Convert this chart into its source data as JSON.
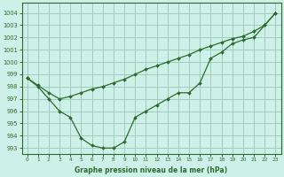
{
  "title": "Graphe pression niveau de la mer (hPa)",
  "background_color": "#cdf0e8",
  "grid_color": "#a0ccbb",
  "line_color": "#2d6a2d",
  "xlim": [
    -0.5,
    23.5
  ],
  "ylim": [
    992.5,
    1004.8
  ],
  "yticks": [
    993,
    994,
    995,
    996,
    997,
    998,
    999,
    1000,
    1001,
    1002,
    1003,
    1004
  ],
  "xticks": [
    0,
    1,
    2,
    3,
    4,
    5,
    6,
    7,
    8,
    9,
    10,
    11,
    12,
    13,
    14,
    15,
    16,
    17,
    18,
    19,
    20,
    21,
    22,
    23
  ],
  "line1_x": [
    0,
    1,
    2,
    3,
    4,
    5,
    6,
    7,
    8,
    9,
    10,
    11,
    12,
    13,
    14,
    15,
    16,
    17,
    18,
    19,
    20,
    21,
    22,
    23
  ],
  "line1_y": [
    998.7,
    998.1,
    997.5,
    997.0,
    997.2,
    997.5,
    997.8,
    998.0,
    998.3,
    998.6,
    999.0,
    999.4,
    999.7,
    1000.0,
    1000.3,
    1000.6,
    1001.0,
    1001.3,
    1001.6,
    1001.9,
    1002.1,
    1002.5,
    1003.0,
    1004.0
  ],
  "line2_x": [
    0,
    1,
    2,
    3,
    4,
    5,
    6,
    7,
    8,
    9,
    10,
    11,
    12,
    13,
    14,
    15,
    16,
    17,
    18,
    19,
    20,
    21,
    22,
    23
  ],
  "line2_y": [
    998.7,
    998.0,
    997.0,
    996.0,
    995.5,
    993.8,
    993.2,
    993.0,
    993.0,
    993.5,
    995.5,
    996.0,
    996.5,
    997.0,
    997.5,
    997.5,
    998.3,
    1000.3,
    1000.8,
    1001.5,
    1001.8,
    1002.0,
    1003.0,
    1004.0
  ]
}
